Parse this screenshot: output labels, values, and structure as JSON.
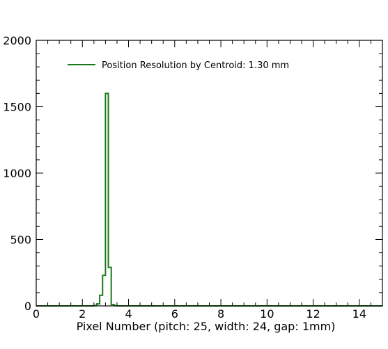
{
  "chart_data": {
    "type": "line",
    "style": "step-histogram",
    "xlabel": "Pixel Number  (pitch: 25, width: 24, gap: 1mm)",
    "ylabel": "",
    "xlim": [
      0,
      15
    ],
    "ylim": [
      0,
      2000
    ],
    "x_ticks": [
      0,
      2,
      4,
      6,
      8,
      10,
      12,
      14
    ],
    "x_tick_labels": [
      "0",
      "2",
      "4",
      "6",
      "8",
      "10",
      "12",
      "14"
    ],
    "y_ticks": [
      0,
      500,
      1000,
      1500,
      2000
    ],
    "y_tick_labels": [
      "0",
      "500",
      "1000",
      "1500",
      "2000"
    ],
    "grid": false,
    "legend_position": "top-left",
    "series": [
      {
        "name": "Position Resolution by Centroid: 1.30 mm",
        "color": "#1a7a1a",
        "bin_width": 0.125,
        "bin_edges_start": 2.5,
        "values": [
          3,
          15,
          80,
          230,
          1600,
          290,
          10,
          2
        ]
      }
    ]
  }
}
